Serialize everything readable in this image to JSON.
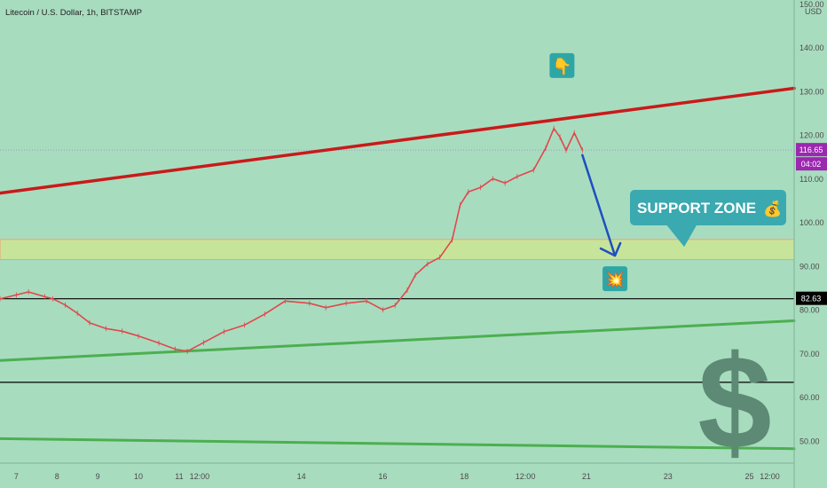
{
  "chart_data": {
    "type": "line",
    "title": "Litecoin / U.S. Dollar, 1h, BITSTAMP",
    "currency": "USD",
    "y_ticks": [
      150,
      140,
      130,
      120,
      110,
      100,
      90,
      80,
      70,
      60,
      50
    ],
    "y_tick_labels": [
      "150.00",
      "140.00",
      "130.00",
      "120.00",
      "110.00",
      "100.00",
      "90.00",
      "80.00",
      "70.00",
      "60.00",
      "50.00"
    ],
    "x_ticks": [
      7,
      8,
      9,
      10,
      11,
      11.5,
      14,
      16,
      18,
      19.5,
      21,
      23,
      25,
      25.5
    ],
    "x_tick_labels": [
      "7",
      "8",
      "9",
      "10",
      "11",
      "12:00",
      "14",
      "16",
      "18",
      "12:00",
      "21",
      "23",
      "25",
      "12:00"
    ],
    "x_range": [
      6.6,
      26.1
    ],
    "ylim": [
      45,
      151
    ],
    "last_price": {
      "value": 116.65,
      "label": "116.65",
      "countdown": "04:02"
    },
    "level_label": {
      "value": 82.63,
      "label": "82.63"
    },
    "series": [
      {
        "values": [
          [
            6.6,
            82.6
          ],
          [
            7.0,
            83.5
          ],
          [
            7.3,
            84.2
          ],
          [
            7.7,
            83.1
          ],
          [
            7.9,
            82.6
          ],
          [
            8.2,
            81.2
          ],
          [
            8.5,
            79.3
          ],
          [
            8.8,
            77.1
          ],
          [
            9.2,
            75.8
          ],
          [
            9.6,
            75.2
          ],
          [
            10.0,
            74.1
          ],
          [
            10.5,
            72.5
          ],
          [
            10.9,
            71.1
          ],
          [
            11.2,
            70.6
          ],
          [
            11.6,
            72.6
          ],
          [
            12.1,
            75.1
          ],
          [
            12.6,
            76.6
          ],
          [
            13.1,
            79.1
          ],
          [
            13.6,
            82.1
          ],
          [
            14.2,
            81.6
          ],
          [
            14.6,
            80.6
          ],
          [
            15.1,
            81.6
          ],
          [
            15.6,
            82.1
          ],
          [
            16.0,
            80.1
          ],
          [
            16.3,
            81.1
          ],
          [
            16.6,
            84.6
          ],
          [
            16.8,
            88.1
          ],
          [
            17.1,
            90.6
          ],
          [
            17.4,
            92.1
          ],
          [
            17.7,
            96.1
          ],
          [
            17.9,
            104.1
          ],
          [
            18.1,
            107.1
          ],
          [
            18.4,
            108.1
          ],
          [
            18.7,
            110.1
          ],
          [
            19.0,
            109.1
          ],
          [
            19.3,
            110.6
          ],
          [
            19.7,
            112.1
          ],
          [
            20.0,
            117.1
          ],
          [
            20.2,
            121.6
          ],
          [
            20.35,
            119.6
          ],
          [
            20.5,
            116.6
          ],
          [
            20.7,
            120.6
          ],
          [
            20.9,
            116.65
          ]
        ]
      }
    ],
    "trendlines": [
      {
        "name": "upper-resistance",
        "color": "#c91a1a",
        "from": [
          6.6,
          106.8
        ],
        "to": [
          26.1,
          130.8
        ]
      },
      {
        "name": "lower-support",
        "color": "#4caf50",
        "from": [
          6.6,
          68.5
        ],
        "to": [
          26.1,
          77.6
        ]
      },
      {
        "name": "bottom-support",
        "color": "#4caf50",
        "from": [
          6.6,
          50.6
        ],
        "to": [
          26.1,
          48.3
        ]
      }
    ],
    "horizontal_levels": [
      {
        "name": "level-82",
        "value": 82.63,
        "color": "#000000"
      },
      {
        "name": "level-63",
        "value": 63.5,
        "color": "#000000"
      }
    ],
    "zone": {
      "from": 91.6,
      "to": 96.2,
      "color": "#c6e59b",
      "border": "#f0a070"
    },
    "forecast_arrow": {
      "from": [
        20.9,
        115.5
      ],
      "to": [
        21.7,
        92.5
      ],
      "color": "#1e4fc0"
    },
    "annotations": {
      "support_text": "SUPPORT ZONE",
      "moneybag_emoji": "💰",
      "pointing_emoji": "👇",
      "explosion_emoji": "💥",
      "dollar_symbol": "$"
    },
    "grid": false,
    "legend": "none"
  }
}
